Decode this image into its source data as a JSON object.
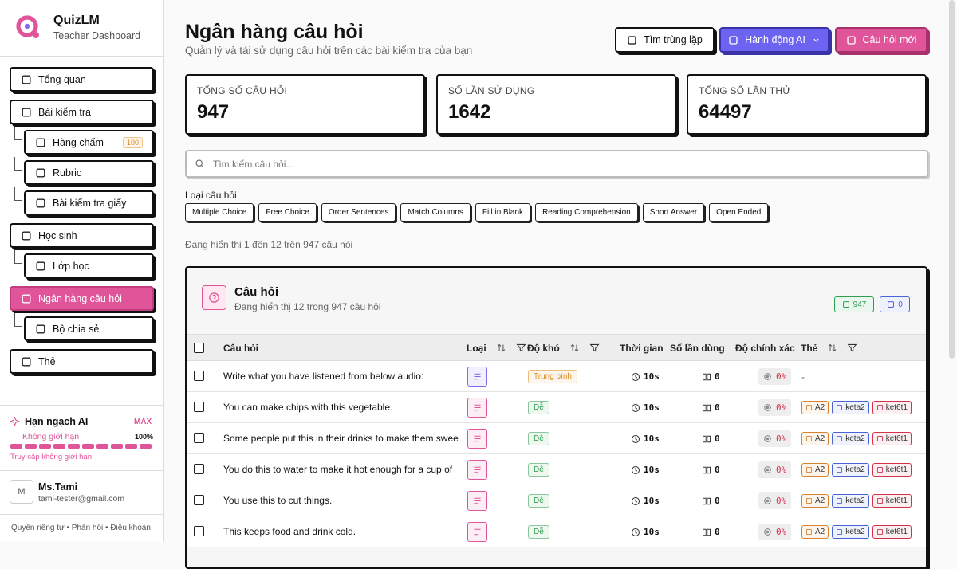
{
  "sidebar": {
    "brand": "QuizLM",
    "tagline": "Teacher Dashboard",
    "nav": [
      {
        "label": "Tổng quan"
      },
      {
        "label": "Bài kiểm tra",
        "children": [
          {
            "label": "Hàng chấm",
            "badge": 100
          },
          {
            "label": "Rubric"
          },
          {
            "label": "Bài kiểm tra giấy"
          }
        ]
      },
      {
        "label": "Học sinh",
        "children": [
          {
            "label": "Lớp học"
          }
        ]
      },
      {
        "label": "Ngân hàng câu hỏi",
        "active": true,
        "children": [
          {
            "label": "Bộ chia sẻ"
          }
        ]
      },
      {
        "label": "Thẻ"
      }
    ],
    "quota": {
      "title": "Hạn ngạch AI",
      "plan": "MAX",
      "status": "Không giới hạn",
      "usage": {
        "value": 100,
        "label": "100%"
      },
      "note": "Truy cập không giới hạn"
    },
    "user": {
      "initial": "M",
      "name": "Ms.Tami",
      "email": "tami-tester@gmail.com"
    },
    "footer": "Quyền riêng tư • Phản hồi • Điều khoản"
  },
  "header": {
    "title": "Ngân hàng câu hỏi",
    "subtitle": "Quản lý và tái sử dụng câu hỏi trên các bài kiểm tra của bạn",
    "buttons": [
      "Tìm trùng lặp",
      "Hành động AI",
      "Câu hỏi mới"
    ]
  },
  "stats": [
    {
      "label": "TỔNG SỐ CÂU HỎI",
      "value": 947
    },
    {
      "label": "SỐ LẦN SỬ DỤNG",
      "value": 1642
    },
    {
      "label": "TỔNG SỐ LẦN THỬ",
      "value": 64497
    }
  ],
  "search": {
    "placeholder": "Tìm kiếm câu hỏi..."
  },
  "filters": {
    "label": "Loại câu hỏi",
    "chips": [
      "Multiple Choice",
      "Free Choice",
      "Order Sentences",
      "Match Columns",
      "Fill in Blank",
      "Reading Comprehension",
      "Short Answer",
      "Open Ended"
    ]
  },
  "showing": "Đang hiển thị 1 đến 12 trên 947 câu hỏi",
  "panel": {
    "title": "Câu hỏi",
    "subtitle": "Đang hiển thị 12 trong 947 câu hỏi",
    "badges": [
      947,
      0
    ],
    "columns": [
      "Câu hỏi",
      "Loại",
      "Độ khó",
      "Thời gian",
      "Số lần dùng",
      "Độ chính xác",
      "Thẻ"
    ],
    "rows": [
      {
        "question": "Write what you have listened from below audio:",
        "type_color": "#7b6cf0",
        "difficulty": {
          "label": "Trung bình",
          "color": "#e08a1e"
        },
        "time": "10s",
        "uses": 0,
        "accuracy": "0%",
        "tags": "-"
      },
      {
        "question": "You can make chips with this vegetable.",
        "type_color": "#e05599",
        "difficulty": {
          "label": "Dễ",
          "color": "#2e9e4f"
        },
        "time": "10s",
        "uses": 0,
        "accuracy": "0%",
        "tags": [
          {
            "label": "A2",
            "color": "#d9822b"
          },
          {
            "label": "keta2",
            "color": "#4a63d8"
          },
          {
            "label": "ket6t1",
            "color": "#d6304a"
          }
        ]
      },
      {
        "question": "Some people put this in their drinks to make them swee",
        "type_color": "#e05599",
        "difficulty": {
          "label": "Dễ",
          "color": "#2e9e4f"
        },
        "time": "10s",
        "uses": 0,
        "accuracy": "0%",
        "tags": [
          {
            "label": "A2",
            "color": "#d9822b"
          },
          {
            "label": "keta2",
            "color": "#4a63d8"
          },
          {
            "label": "ket6t1",
            "color": "#d6304a"
          }
        ]
      },
      {
        "question": "You do this to water to make it hot enough for a cup of",
        "type_color": "#e05599",
        "difficulty": {
          "label": "Dễ",
          "color": "#2e9e4f"
        },
        "time": "10s",
        "uses": 0,
        "accuracy": "0%",
        "tags": [
          {
            "label": "A2",
            "color": "#d9822b"
          },
          {
            "label": "keta2",
            "color": "#4a63d8"
          },
          {
            "label": "ket6t1",
            "color": "#d6304a"
          }
        ]
      },
      {
        "question": "You use this to cut things.",
        "type_color": "#e05599",
        "difficulty": {
          "label": "Dễ",
          "color": "#2e9e4f"
        },
        "time": "10s",
        "uses": 0,
        "accuracy": "0%",
        "tags": [
          {
            "label": "A2",
            "color": "#d9822b"
          },
          {
            "label": "keta2",
            "color": "#4a63d8"
          },
          {
            "label": "ket6t1",
            "color": "#d6304a"
          }
        ]
      },
      {
        "question": "This keeps food and drink cold.",
        "type_color": "#e05599",
        "difficulty": {
          "label": "Dễ",
          "color": "#2e9e4f"
        },
        "time": "10s",
        "uses": 0,
        "accuracy": "0%",
        "tags": [
          {
            "label": "A2",
            "color": "#d9822b"
          },
          {
            "label": "keta2",
            "color": "#4a63d8"
          },
          {
            "label": "ket6t1",
            "color": "#d6304a"
          }
        ]
      }
    ]
  }
}
